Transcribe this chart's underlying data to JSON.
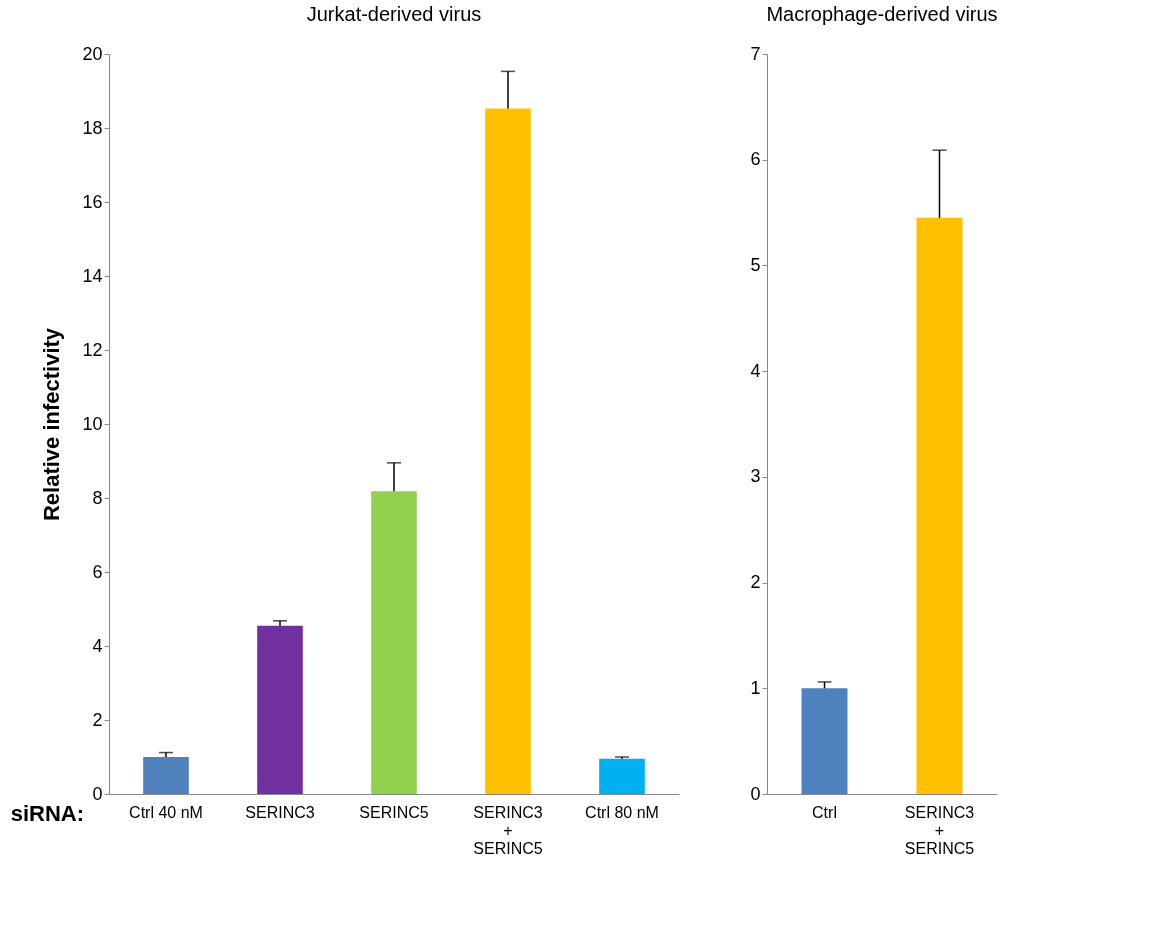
{
  "chart_data": [
    {
      "type": "bar",
      "title": "Jurkat-derived virus",
      "ylabel": "Relative infectivity",
      "categories": [
        "Ctrl 40 nM",
        "SERINC3",
        "SERINC5",
        "SERINC3\n+\nSERINC5",
        "Ctrl 80 nM"
      ],
      "values": [
        1.0,
        4.55,
        8.18,
        18.53,
        0.95
      ],
      "errors": [
        0.12,
        0.13,
        0.77,
        1.0,
        0.05
      ],
      "colors": [
        "#4f81bd",
        "#7030a0",
        "#92d050",
        "#ffc000",
        "#00b0f0"
      ],
      "ylim": [
        0,
        20
      ],
      "yticks": [
        0,
        2,
        4,
        6,
        8,
        10,
        12,
        14,
        16,
        18,
        20
      ],
      "grid": false,
      "annotations": [
        "siRNA:"
      ]
    },
    {
      "type": "bar",
      "title": "Macrophage-derived virus",
      "categories": [
        "Ctrl",
        "SERINC3\n+\nSERINC5"
      ],
      "values": [
        1.0,
        5.45
      ],
      "errors": [
        0.06,
        0.64
      ],
      "colors": [
        "#4f81bd",
        "#ffc000"
      ],
      "ylim": [
        0,
        7
      ],
      "yticks": [
        0,
        1,
        2,
        3,
        4,
        5,
        6,
        7
      ],
      "grid": false
    }
  ]
}
